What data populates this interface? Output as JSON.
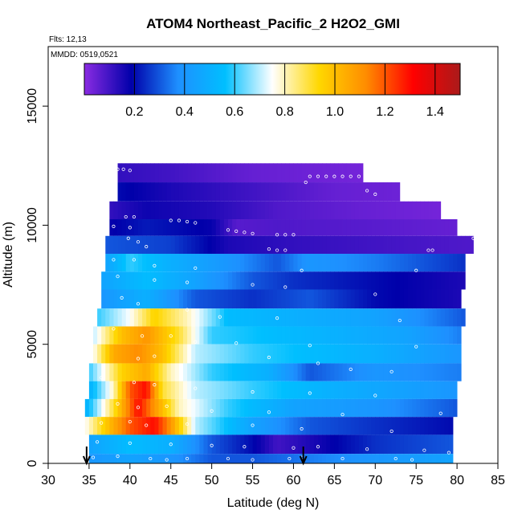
{
  "chart_data": {
    "type": "heatmap",
    "title": "ATOM4 Northeast_Pacific_2 H2O2_GMI",
    "annotations": [
      "Flts: 12,13",
      "MMDD: 0519,0521"
    ],
    "xlabel": "Latitude (deg N)",
    "ylabel": "Altitude (m)",
    "xlim": [
      30,
      85
    ],
    "ylim": [
      0,
      17500
    ],
    "x_ticks": [
      30,
      35,
      40,
      45,
      50,
      55,
      60,
      65,
      70,
      75,
      80,
      85
    ],
    "y_ticks": [
      0,
      5000,
      10000,
      15000
    ],
    "grid": false,
    "colorbar": {
      "placement": "top",
      "range": [
        0,
        1.5
      ],
      "ticks": [
        "0.2",
        "0.4",
        "0.6",
        "0.8",
        "1.0",
        "1.2",
        "1.4"
      ],
      "tick_values": [
        0.2,
        0.4,
        0.6,
        0.8,
        1.0,
        1.2,
        1.4
      ],
      "colormap": [
        "#8a2be2",
        "#0000aa",
        "#1e90ff",
        "#00bfff",
        "#ffffff",
        "#ffd700",
        "#ff8c00",
        "#ff0000",
        "#aa1a1a"
      ]
    },
    "arrows_at_latitude": [
      34.7,
      61.2
    ],
    "layers": [
      {
        "alt": 12200,
        "lat_min": 38.5,
        "lat_max": 68.5,
        "stops": [
          [
            38.5,
            0.12
          ],
          [
            45,
            0.1
          ],
          [
            55,
            0.05
          ],
          [
            68.5,
            0.03
          ]
        ]
      },
      {
        "alt": 11400,
        "lat_min": 38.5,
        "lat_max": 73,
        "stops": [
          [
            38.5,
            0.2
          ],
          [
            45,
            0.15
          ],
          [
            55,
            0.1
          ],
          [
            65,
            0.05
          ],
          [
            73,
            0.04
          ]
        ]
      },
      {
        "alt": 10600,
        "lat_min": 37.5,
        "lat_max": 78,
        "stops": [
          [
            37.5,
            0.12
          ],
          [
            42,
            0.17
          ],
          [
            50,
            0.14
          ],
          [
            58,
            0.08
          ],
          [
            68,
            0.05
          ],
          [
            78,
            0.03
          ]
        ]
      },
      {
        "alt": 9900,
        "lat_min": 37.5,
        "lat_max": 80,
        "stops": [
          [
            37.5,
            0.18
          ],
          [
            42,
            0.22
          ],
          [
            50,
            0.18
          ],
          [
            53,
            0.07
          ],
          [
            58,
            0.08
          ],
          [
            68,
            0.07
          ],
          [
            80,
            0.05
          ]
        ]
      },
      {
        "alt": 9200,
        "lat_min": 37,
        "lat_max": 82,
        "stops": [
          [
            37,
            0.3
          ],
          [
            45,
            0.27
          ],
          [
            52,
            0.15
          ],
          [
            60,
            0.12
          ],
          [
            70,
            0.1
          ],
          [
            82,
            0.08
          ]
        ]
      },
      {
        "alt": 8400,
        "lat_min": 37,
        "lat_max": 81,
        "stops": [
          [
            37,
            0.45
          ],
          [
            40,
            0.6
          ],
          [
            45,
            0.5
          ],
          [
            52,
            0.4
          ],
          [
            58,
            0.3
          ],
          [
            62,
            0.4
          ],
          [
            70,
            0.35
          ],
          [
            81,
            0.25
          ]
        ]
      },
      {
        "alt": 7700,
        "lat_min": 36.5,
        "lat_max": 81,
        "stops": [
          [
            36.5,
            0.45
          ],
          [
            42,
            0.55
          ],
          [
            48,
            0.45
          ],
          [
            55,
            0.3
          ],
          [
            60,
            0.25
          ],
          [
            70,
            0.2
          ],
          [
            81,
            0.15
          ]
        ]
      },
      {
        "alt": 6900,
        "lat_min": 36.5,
        "lat_max": 80.5,
        "stops": [
          [
            36.5,
            0.4
          ],
          [
            42,
            0.5
          ],
          [
            48,
            0.3
          ],
          [
            55,
            0.25
          ],
          [
            62,
            0.3
          ],
          [
            70,
            0.2
          ],
          [
            80.5,
            0.15
          ]
        ]
      },
      {
        "alt": 6100,
        "lat_min": 36,
        "lat_max": 81,
        "stops": [
          [
            36,
            0.6
          ],
          [
            40,
            0.75
          ],
          [
            43,
            0.95
          ],
          [
            47,
            0.8
          ],
          [
            52,
            0.55
          ],
          [
            60,
            0.5
          ],
          [
            70,
            0.45
          ],
          [
            81,
            0.3
          ]
        ]
      },
      {
        "alt": 5400,
        "lat_min": 35.5,
        "lat_max": 80.5,
        "stops": [
          [
            35.5,
            0.7
          ],
          [
            39,
            1.0
          ],
          [
            42,
            1.1
          ],
          [
            46,
            0.9
          ],
          [
            50,
            0.6
          ],
          [
            58,
            0.55
          ],
          [
            66,
            0.5
          ],
          [
            74,
            0.45
          ],
          [
            80.5,
            0.35
          ]
        ]
      },
      {
        "alt": 4600,
        "lat_min": 35.5,
        "lat_max": 80.5,
        "stops": [
          [
            35.5,
            0.75
          ],
          [
            38,
            1.05
          ],
          [
            41,
            1.12
          ],
          [
            44,
            1.0
          ],
          [
            48,
            0.7
          ],
          [
            55,
            0.6
          ],
          [
            62,
            0.55
          ],
          [
            70,
            0.5
          ],
          [
            80.5,
            0.4
          ]
        ]
      },
      {
        "alt": 3800,
        "lat_min": 35,
        "lat_max": 80.5,
        "stops": [
          [
            35,
            0.6
          ],
          [
            39,
            0.95
          ],
          [
            42,
            1.05
          ],
          [
            45,
            0.8
          ],
          [
            50,
            0.6
          ],
          [
            57,
            0.5
          ],
          [
            62,
            0.3
          ],
          [
            70,
            0.4
          ],
          [
            80.5,
            0.35
          ]
        ]
      },
      {
        "alt": 3100,
        "lat_min": 35,
        "lat_max": 80,
        "stops": [
          [
            35,
            0.5
          ],
          [
            38,
            0.8
          ],
          [
            40,
            1.2
          ],
          [
            42,
            1.3
          ],
          [
            44,
            0.9
          ],
          [
            48,
            0.7
          ],
          [
            55,
            0.6
          ],
          [
            65,
            0.5
          ],
          [
            80,
            0.4
          ]
        ]
      },
      {
        "alt": 2300,
        "lat_min": 34.5,
        "lat_max": 80,
        "stops": [
          [
            34.5,
            0.5
          ],
          [
            38,
            0.9
          ],
          [
            41,
            1.3
          ],
          [
            43,
            1.1
          ],
          [
            46,
            0.8
          ],
          [
            52,
            0.6
          ],
          [
            60,
            0.45
          ],
          [
            70,
            0.4
          ],
          [
            80,
            0.3
          ]
        ]
      },
      {
        "alt": 1600,
        "lat_min": 34.5,
        "lat_max": 79.5,
        "stops": [
          [
            34.5,
            0.75
          ],
          [
            38,
            1.05
          ],
          [
            40,
            1.2
          ],
          [
            43,
            1.3
          ],
          [
            45,
            1.1
          ],
          [
            48,
            0.7
          ],
          [
            55,
            0.45
          ],
          [
            62,
            0.3
          ],
          [
            70,
            0.25
          ],
          [
            79.5,
            0.2
          ]
        ]
      },
      {
        "alt": 800,
        "lat_min": 35,
        "lat_max": 79.5,
        "stops": [
          [
            35,
            0.45
          ],
          [
            40,
            0.55
          ],
          [
            45,
            0.5
          ],
          [
            50,
            0.3
          ],
          [
            55,
            0.2
          ],
          [
            58,
            0.1
          ],
          [
            62,
            0.15
          ],
          [
            70,
            0.25
          ],
          [
            79.5,
            0.3
          ]
        ]
      },
      {
        "alt": 0,
        "lat_min": 35,
        "lat_max": 79.5,
        "stops": [
          [
            35,
            0.4
          ],
          [
            40,
            0.45
          ],
          [
            45,
            0.4
          ],
          [
            50,
            0.3
          ],
          [
            55,
            0.3
          ],
          [
            62,
            0.35
          ],
          [
            70,
            0.4
          ],
          [
            79.5,
            0.45
          ]
        ]
      }
    ],
    "samples": [
      [
        38.5,
        12350
      ],
      [
        39.2,
        12350
      ],
      [
        40,
        12300
      ],
      [
        62,
        12050
      ],
      [
        63,
        12050
      ],
      [
        64,
        12050
      ],
      [
        65,
        12050
      ],
      [
        66,
        12050
      ],
      [
        67,
        12050
      ],
      [
        68,
        12050
      ],
      [
        61.5,
        11800
      ],
      [
        69,
        11450
      ],
      [
        70,
        11300
      ],
      [
        39.5,
        10350
      ],
      [
        40.5,
        10350
      ],
      [
        45,
        10200
      ],
      [
        46,
        10200
      ],
      [
        47,
        10150
      ],
      [
        48,
        10100
      ],
      [
        38,
        9950
      ],
      [
        40,
        9900
      ],
      [
        52,
        9800
      ],
      [
        53,
        9750
      ],
      [
        54,
        9700
      ],
      [
        55,
        9650
      ],
      [
        58,
        9600
      ],
      [
        59,
        9600
      ],
      [
        60,
        9600
      ],
      [
        39.8,
        9450
      ],
      [
        41,
        9300
      ],
      [
        42,
        9100
      ],
      [
        57,
        9000
      ],
      [
        58,
        8950
      ],
      [
        59,
        8950
      ],
      [
        76.5,
        8950
      ],
      [
        77,
        8950
      ],
      [
        82,
        9450
      ],
      [
        38,
        8550
      ],
      [
        40.5,
        8550
      ],
      [
        43,
        8300
      ],
      [
        48,
        8200
      ],
      [
        61,
        8100
      ],
      [
        75,
        8100
      ],
      [
        38.5,
        7850
      ],
      [
        43,
        7700
      ],
      [
        47,
        7600
      ],
      [
        55,
        7500
      ],
      [
        59,
        7400
      ],
      [
        70,
        7100
      ],
      [
        39,
        6950
      ],
      [
        41,
        6700
      ],
      [
        47,
        6450
      ],
      [
        51,
        6150
      ],
      [
        58,
        6100
      ],
      [
        73,
        6000
      ],
      [
        38,
        5650
      ],
      [
        41.5,
        5350
      ],
      [
        45,
        5350
      ],
      [
        48,
        5100
      ],
      [
        53,
        5050
      ],
      [
        62,
        4950
      ],
      [
        75,
        4900
      ],
      [
        41,
        4400
      ],
      [
        43,
        4500
      ],
      [
        57,
        4450
      ],
      [
        63,
        4200
      ],
      [
        67,
        3950
      ],
      [
        72,
        3850
      ],
      [
        36.5,
        3600
      ],
      [
        40.5,
        3400
      ],
      [
        43,
        3300
      ],
      [
        48,
        3150
      ],
      [
        55,
        3000
      ],
      [
        62,
        2950
      ],
      [
        70,
        2850
      ],
      [
        38.5,
        2500
      ],
      [
        41,
        2350
      ],
      [
        44.5,
        2400
      ],
      [
        50,
        2200
      ],
      [
        57,
        2150
      ],
      [
        66,
        2050
      ],
      [
        78,
        2100
      ],
      [
        36.5,
        1700
      ],
      [
        40,
        1750
      ],
      [
        42,
        1600
      ],
      [
        47,
        1650
      ],
      [
        55,
        1600
      ],
      [
        61,
        1450
      ],
      [
        72,
        1350
      ],
      [
        36,
        900
      ],
      [
        40,
        850
      ],
      [
        45,
        800
      ],
      [
        50,
        750
      ],
      [
        54,
        700
      ],
      [
        60,
        650
      ],
      [
        63,
        700
      ],
      [
        69,
        600
      ],
      [
        76,
        550
      ],
      [
        79,
        450
      ],
      [
        35.5,
        250
      ],
      [
        38.5,
        300
      ],
      [
        42.5,
        200
      ],
      [
        44.5,
        150
      ],
      [
        47,
        200
      ],
      [
        52,
        200
      ],
      [
        55,
        150
      ],
      [
        59.5,
        200
      ],
      [
        61,
        250
      ],
      [
        66,
        200
      ],
      [
        72.5,
        200
      ],
      [
        74.5,
        150
      ]
    ]
  }
}
